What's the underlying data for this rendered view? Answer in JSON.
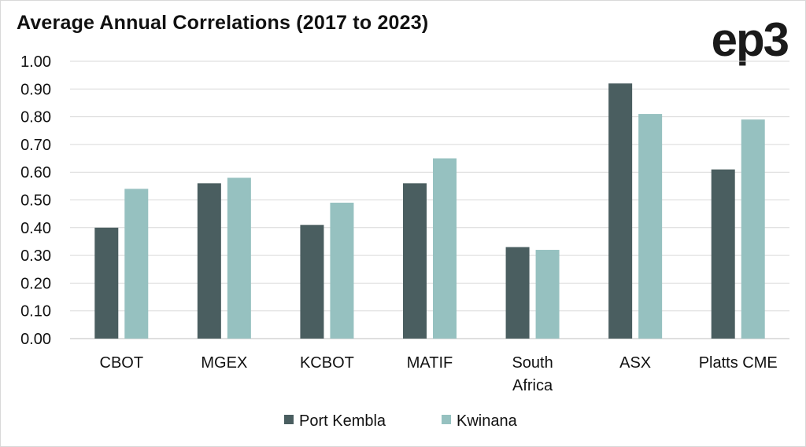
{
  "brand": {
    "logo_text": "ep3"
  },
  "chart_data": {
    "type": "bar",
    "title": "Average Annual Correlations (2017 to 2023)",
    "categories": [
      "CBOT",
      "MGEX",
      "KCBOT",
      "MATIF",
      "South Africa",
      "ASX",
      "Platts CME"
    ],
    "series": [
      {
        "name": "Port Kembla",
        "color": "#4a5e60",
        "values": [
          0.4,
          0.56,
          0.41,
          0.56,
          0.33,
          0.92,
          0.61
        ]
      },
      {
        "name": "Kwinana",
        "color": "#96c1c0",
        "values": [
          0.54,
          0.58,
          0.49,
          0.65,
          0.32,
          0.81,
          0.79
        ]
      }
    ],
    "ylim": [
      0,
      1.0
    ],
    "yticks": [
      "0.00",
      "0.10",
      "0.20",
      "0.30",
      "0.40",
      "0.50",
      "0.60",
      "0.70",
      "0.80",
      "0.90",
      "1.00"
    ],
    "xlabel": "",
    "ylabel": "",
    "grid": true,
    "legend_position": "bottom"
  }
}
